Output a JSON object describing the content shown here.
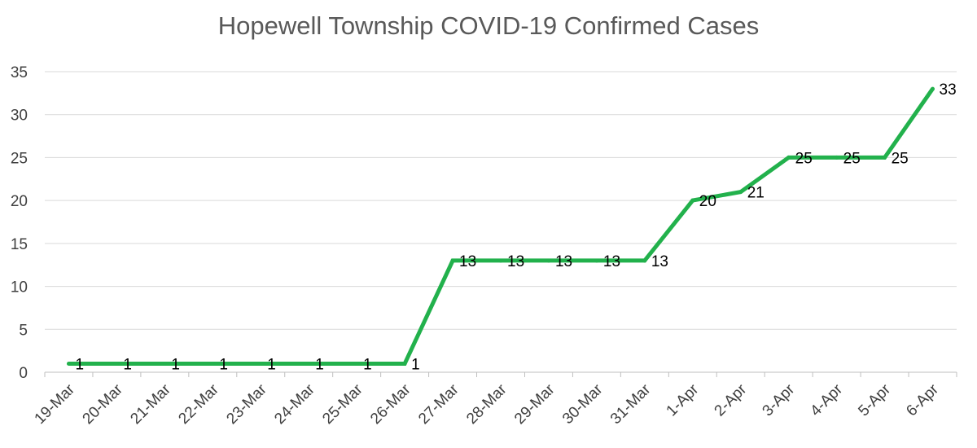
{
  "chart_data": {
    "type": "line",
    "title": "Hopewell Township COVID-19 Confirmed Cases",
    "xlabel": "",
    "ylabel": "",
    "categories": [
      "19-Mar",
      "20-Mar",
      "21-Mar",
      "22-Mar",
      "23-Mar",
      "24-Mar",
      "25-Mar",
      "26-Mar",
      "27-Mar",
      "28-Mar",
      "29-Mar",
      "30-Mar",
      "31-Mar",
      "1-Apr",
      "2-Apr",
      "3-Apr",
      "4-Apr",
      "5-Apr",
      "6-Apr"
    ],
    "values": [
      1,
      1,
      1,
      1,
      1,
      1,
      1,
      1,
      13,
      13,
      13,
      13,
      13,
      20,
      21,
      25,
      25,
      25,
      33
    ],
    "data_labels": [
      "1",
      "1",
      "1",
      "1",
      "1",
      "1",
      "1",
      "1",
      "13",
      "13",
      "13",
      "13",
      "13",
      "20",
      "21",
      "25",
      "25",
      "25",
      "33"
    ],
    "ylim": [
      0,
      35
    ],
    "yticks": [
      0,
      5,
      10,
      15,
      20,
      25,
      30,
      35
    ],
    "grid": true,
    "legend": "none",
    "line_color": "#22b14c"
  }
}
